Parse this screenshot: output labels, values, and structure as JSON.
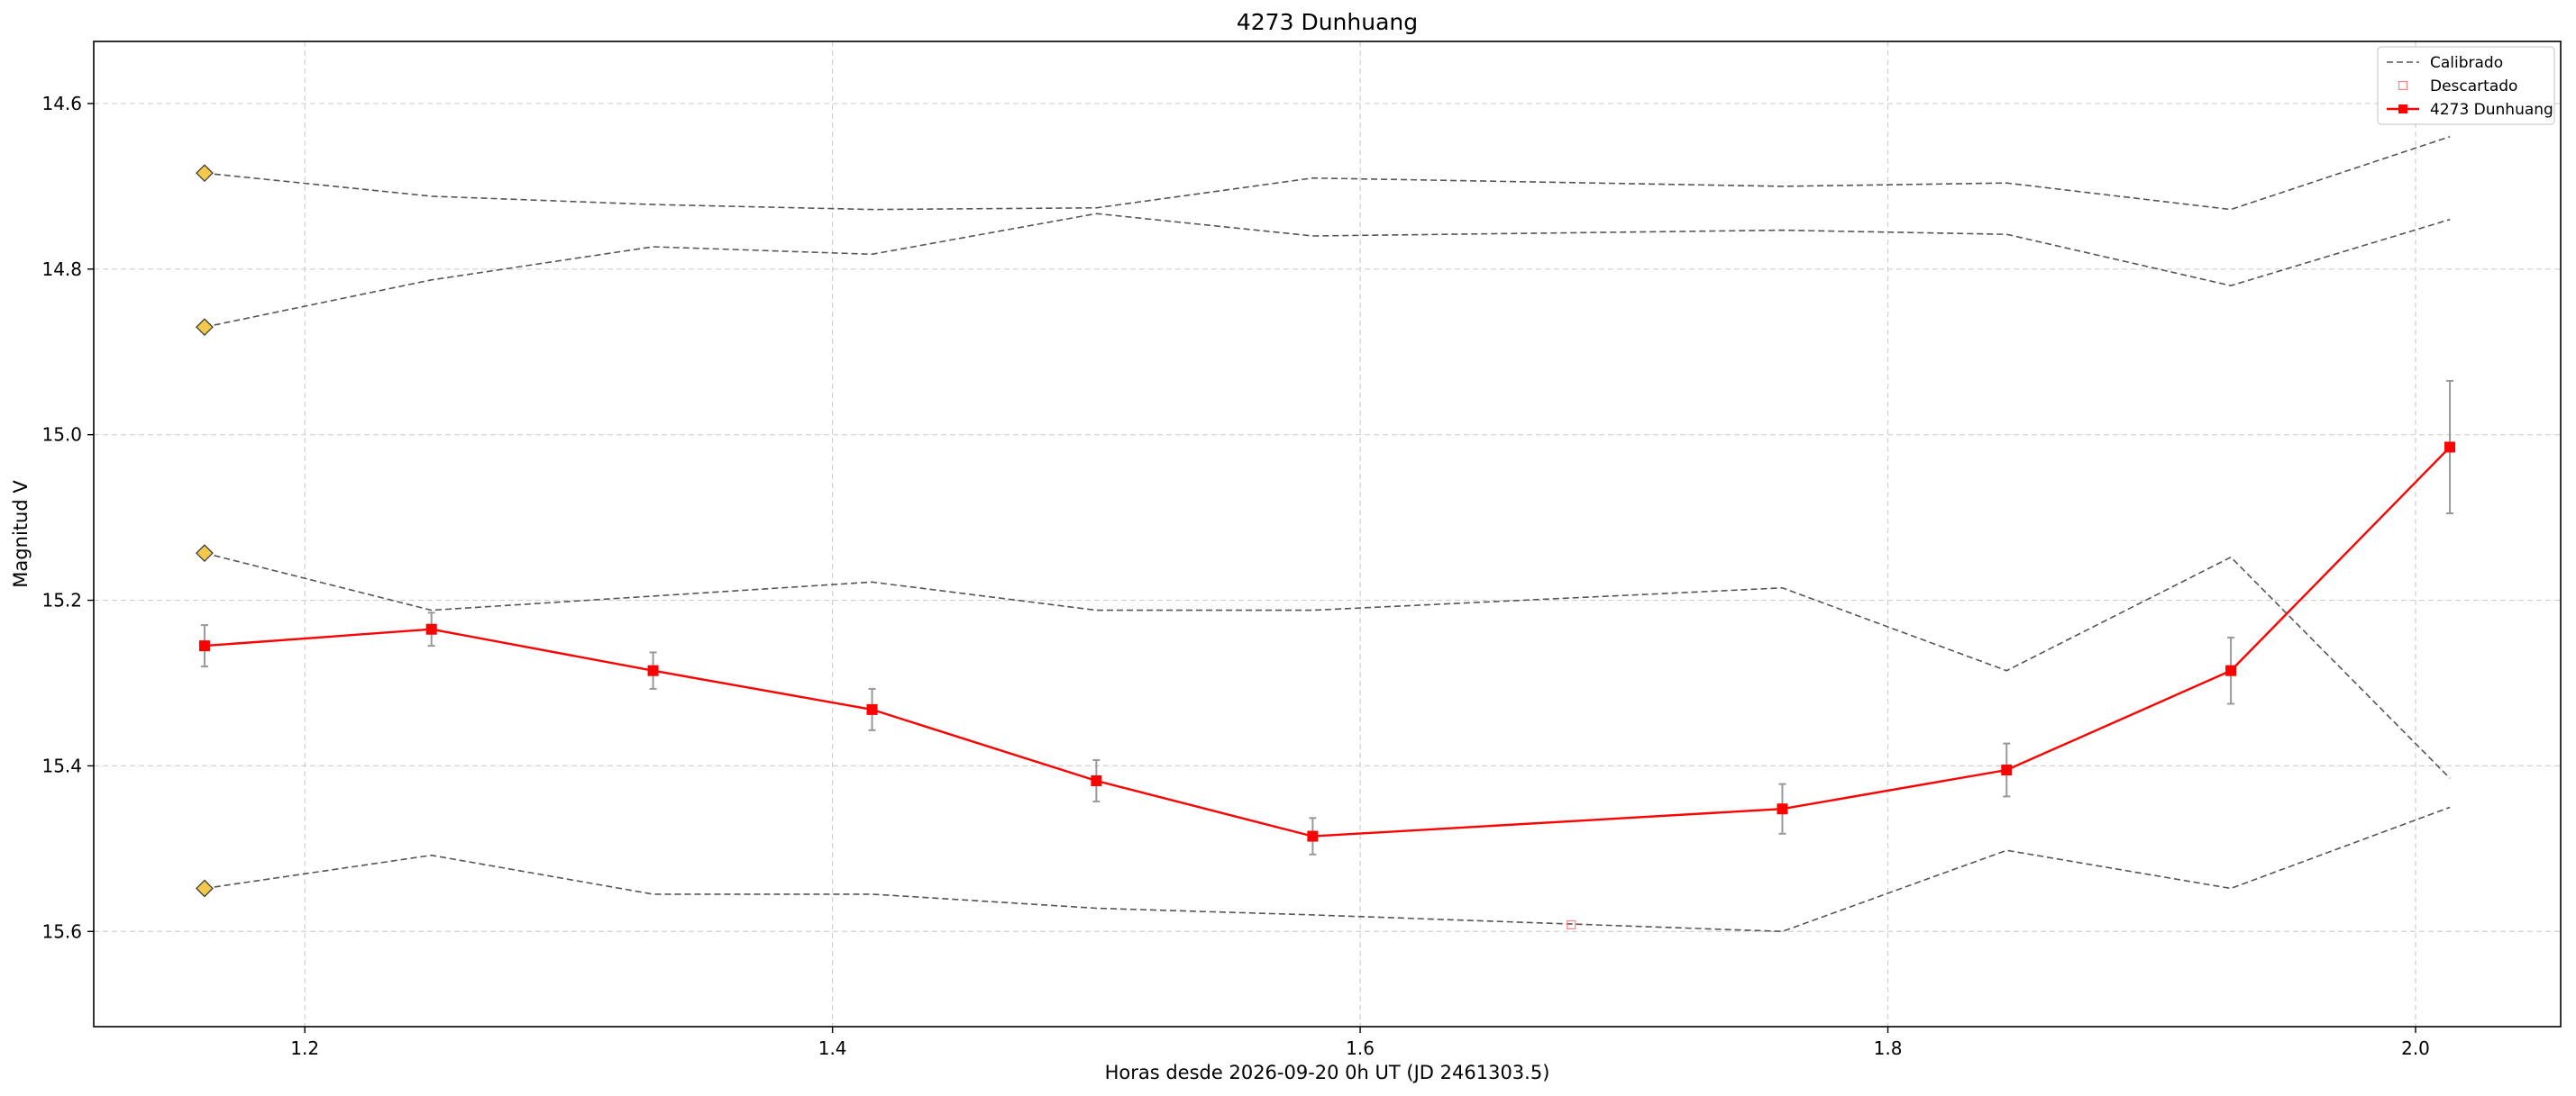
{
  "chart_data": {
    "type": "line",
    "title": "4273 Dunhuang",
    "xlabel": "Horas desde 2026-09-20 0h UT (JD 2461303.5)",
    "ylabel": "Magnitud V",
    "xlim": [
      1.12,
      2.055
    ],
    "ylim": [
      15.715,
      14.525
    ],
    "y_inverted": true,
    "grid": true,
    "legend_position": "top-right",
    "x_ticks": [
      "1.2",
      "1.4",
      "1.6",
      "1.8",
      "2.0"
    ],
    "y_ticks": [
      "14.6",
      "14.8",
      "15.0",
      "15.2",
      "15.4",
      "15.6"
    ],
    "colors": {
      "target": "#ff0000",
      "calibrated": "#555555",
      "discarded": "#ff8080",
      "comparison_marker": "#f2c94c",
      "errorbar": "#999999"
    },
    "legend": [
      {
        "label": "Calibrado",
        "style": "dashed"
      },
      {
        "label": "Descartado",
        "style": "open-square"
      },
      {
        "label": "4273 Dunhuang",
        "style": "line-square"
      }
    ],
    "target": {
      "name": "4273 Dunhuang",
      "x": [
        1.162,
        1.248,
        1.332,
        1.415,
        1.5,
        1.582,
        1.76,
        1.845,
        1.93,
        2.013
      ],
      "y": [
        15.255,
        15.235,
        15.285,
        15.332,
        15.418,
        15.485,
        15.452,
        15.405,
        15.285,
        15.015
      ],
      "err": [
        0.025,
        0.02,
        0.022,
        0.025,
        0.025,
        0.022,
        0.03,
        0.032,
        0.04,
        0.08
      ]
    },
    "discarded": [
      {
        "x": 1.68,
        "y": 15.592
      }
    ],
    "comparisons": [
      {
        "x": [
          1.162,
          1.248,
          1.332,
          1.415,
          1.5,
          1.582,
          1.76,
          1.845,
          1.93,
          2.013
        ],
        "y": [
          14.684,
          14.712,
          14.722,
          14.728,
          14.726,
          14.69,
          14.7,
          14.696,
          14.728,
          14.64
        ]
      },
      {
        "x": [
          1.162,
          1.248,
          1.332,
          1.415,
          1.5,
          1.582,
          1.76,
          1.845,
          1.93,
          2.013
        ],
        "y": [
          14.87,
          14.813,
          14.773,
          14.782,
          14.733,
          14.76,
          14.753,
          14.758,
          14.82,
          14.74
        ]
      },
      {
        "x": [
          1.162,
          1.248,
          1.332,
          1.415,
          1.5,
          1.582,
          1.76,
          1.845,
          1.93,
          2.013
        ],
        "y": [
          15.143,
          15.212,
          15.195,
          15.178,
          15.212,
          15.212,
          15.185,
          15.285,
          15.148,
          15.415
        ]
      },
      {
        "x": [
          1.162,
          1.248,
          1.332,
          1.415,
          1.5,
          1.582,
          1.76,
          1.845,
          1.93,
          2.013
        ],
        "y": [
          15.548,
          15.508,
          15.555,
          15.555,
          15.572,
          15.58,
          15.6,
          15.502,
          15.548,
          15.45
        ]
      }
    ]
  }
}
